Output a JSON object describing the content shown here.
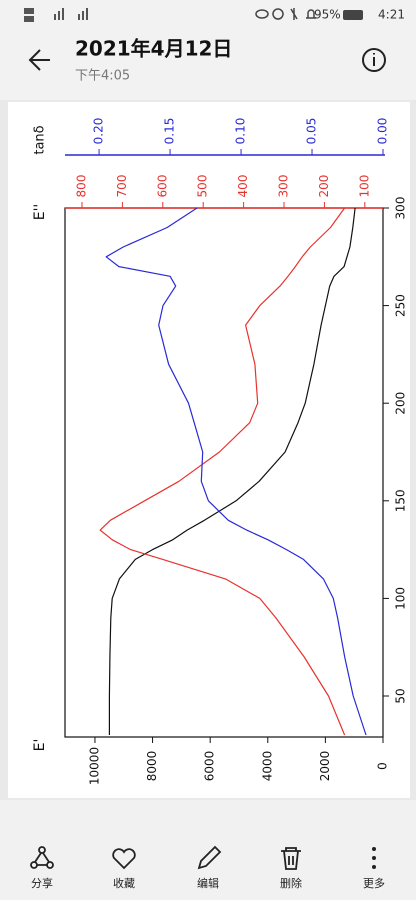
{
  "status_bar": {
    "battery": "95%",
    "time": "4:21"
  },
  "header": {
    "title": "2021年4月12日",
    "subtitle": "下午4:05"
  },
  "chart_data": {
    "type": "line",
    "xlim": [
      29,
      300
    ],
    "xticks": [
      50,
      100,
      150,
      200,
      250,
      300
    ],
    "ylabel": "E'",
    "ylim": [
      0,
      11040
    ],
    "yticks": [
      0,
      2000,
      4000,
      6000,
      8000,
      10000
    ],
    "y2label": "E''",
    "y2lim": [
      55,
      842
    ],
    "y2ticks": [
      100,
      200,
      300,
      400,
      500,
      600,
      700,
      800
    ],
    "y3label": "tanδ",
    "y3lim": [
      0,
      0.224
    ],
    "y3ticks": [
      {
        "value": 0,
        "label": "0.00"
      },
      0.05,
      {
        "value": 0.1,
        "label": "0.10"
      },
      0.15,
      {
        "value": 0.2,
        "label": "0.20"
      }
    ],
    "x": [
      30,
      50,
      70,
      90,
      100,
      110,
      120,
      125,
      130,
      135,
      140,
      150,
      160,
      175,
      190,
      200,
      220,
      240,
      250,
      260,
      265,
      270,
      275,
      280,
      290,
      300
    ],
    "series": [
      {
        "color": "#111111",
        "axis": "y",
        "values": [
          9500,
          9500,
          9480,
          9450,
          9400,
          9150,
          8600,
          8000,
          7300,
          6800,
          6200,
          5100,
          4300,
          3400,
          2950,
          2700,
          2400,
          2150,
          2000,
          1850,
          1700,
          1350,
          1250,
          1150,
          1050,
          970
        ]
      },
      {
        "color": "#e8322e",
        "axis": "y2",
        "values": [
          150,
          190,
          250,
          320,
          360,
          445,
          600,
          680,
          725,
          755,
          730,
          645,
          560,
          460,
          385,
          365,
          372,
          395,
          360,
          310,
          290,
          272,
          255,
          235,
          185,
          150
        ]
      },
      {
        "color": "#2a2ad6",
        "axis": "y3",
        "values": [
          0.012,
          0.021,
          0.027,
          0.032,
          0.035,
          0.042,
          0.056,
          0.068,
          0.081,
          0.096,
          0.109,
          0.123,
          0.128,
          0.127,
          0.133,
          0.137,
          0.151,
          0.158,
          0.155,
          0.146,
          0.15,
          0.186,
          0.195,
          0.183,
          0.152,
          0.131
        ]
      }
    ]
  },
  "toolbar": {
    "items": [
      "分享",
      "收藏",
      "编辑",
      "删除",
      "更多"
    ]
  }
}
